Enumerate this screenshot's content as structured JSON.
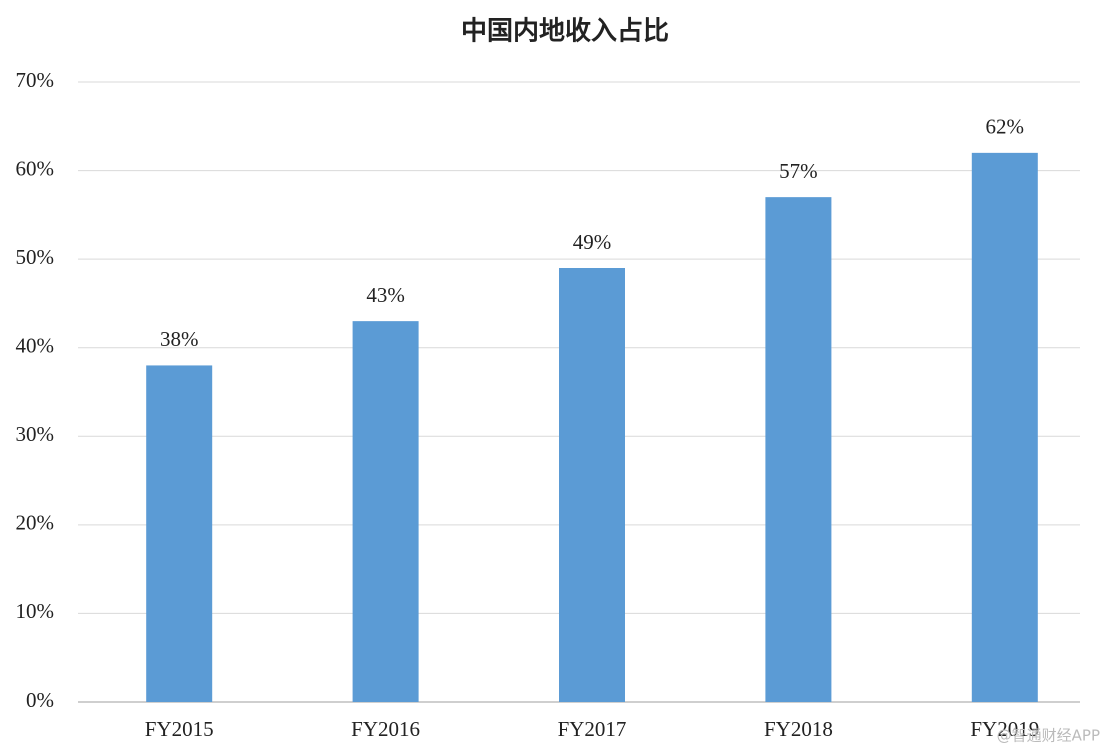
{
  "chart_data": {
    "type": "bar",
    "title": "中国内地收入占比",
    "categories": [
      "FY2015",
      "FY2016",
      "FY2017",
      "FY2018",
      "FY2019"
    ],
    "values": [
      38,
      43,
      49,
      57,
      62
    ],
    "value_labels": [
      "38%",
      "43%",
      "49%",
      "57%",
      "62%"
    ],
    "color": "#5b9bd5",
    "ylim": [
      0,
      70
    ],
    "yticks": [
      {
        "value": 0,
        "label": "0%"
      },
      {
        "value": 10,
        "label": "10%"
      },
      {
        "value": 20,
        "label": "20%"
      },
      {
        "value": 30,
        "label": "30%"
      },
      {
        "value": 40,
        "label": "40%"
      },
      {
        "value": 50,
        "label": "50%"
      },
      {
        "value": 60,
        "label": "60%"
      },
      {
        "value": 70,
        "label": "70%"
      }
    ],
    "grid": true,
    "watermark": "@智通财经APP"
  }
}
